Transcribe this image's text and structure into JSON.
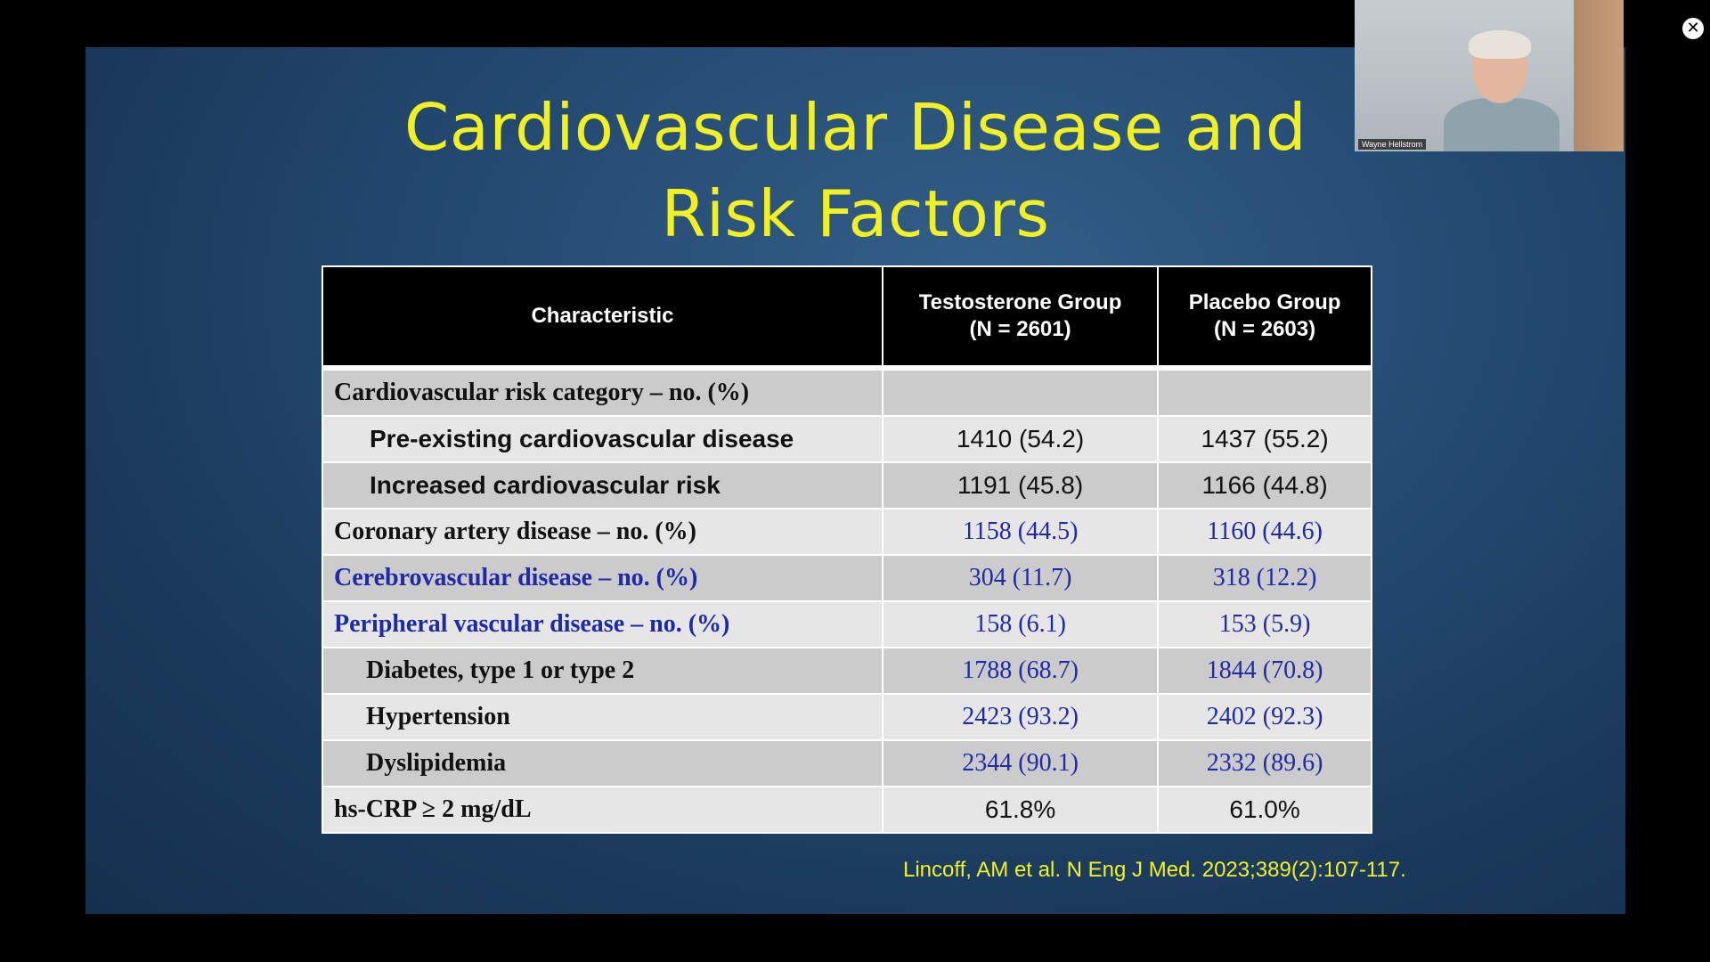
{
  "slide": {
    "title_line1": "Cardiovascular Disease and",
    "title_line2": "Risk Factors",
    "citation": "Lincoff, AM et al. N Eng J Med. 2023;389(2):107-117."
  },
  "table": {
    "headers": [
      "Characteristic",
      "Testosterone Group (N = 2601)",
      "Placebo Group (N = 2603)"
    ],
    "header_lines": {
      "characteristic": "Characteristic",
      "testosterone_line1": "Testosterone Group",
      "testosterone_line2": "(N = 2601)",
      "placebo_line1": "Placebo Group",
      "placebo_line2": "(N = 2603)"
    },
    "rows": [
      {
        "label": "Cardiovascular risk category – no. (%)",
        "testosterone": "",
        "placebo": ""
      },
      {
        "label": "Pre-existing cardiovascular disease",
        "testosterone": "1410 (54.2)",
        "placebo": "1437 (55.2)"
      },
      {
        "label": "Increased cardiovascular risk",
        "testosterone": "1191 (45.8)",
        "placebo": "1166 (44.8)"
      },
      {
        "label": "Coronary artery disease – no. (%)",
        "testosterone": "1158 (44.5)",
        "placebo": "1160 (44.6)"
      },
      {
        "label": "Cerebrovascular disease – no. (%)",
        "testosterone": "304 (11.7)",
        "placebo": "318 (12.2)"
      },
      {
        "label": "Peripheral vascular disease – no. (%)",
        "testosterone": "158 (6.1)",
        "placebo": "153 (5.9)"
      },
      {
        "label": "Diabetes, type 1 or type 2",
        "testosterone": "1788 (68.7)",
        "placebo": "1844 (70.8)"
      },
      {
        "label": "Hypertension",
        "testosterone": "2423 (93.2)",
        "placebo": "2402 (92.3)"
      },
      {
        "label": "Dyslipidemia",
        "testosterone": "2344 (90.1)",
        "placebo": "2332 (89.6)"
      },
      {
        "label": "hs-CRP ≥ 2 mg/dL",
        "testosterone": "61.8%",
        "placebo": "61.0%"
      }
    ]
  },
  "video": {
    "participant_name": "Wayne Hellstrom"
  },
  "controls": {
    "close_icon": "close-icon"
  },
  "colors": {
    "title": "#f1f024",
    "background": "#254b73",
    "blue_text": "#1e2aa8"
  }
}
